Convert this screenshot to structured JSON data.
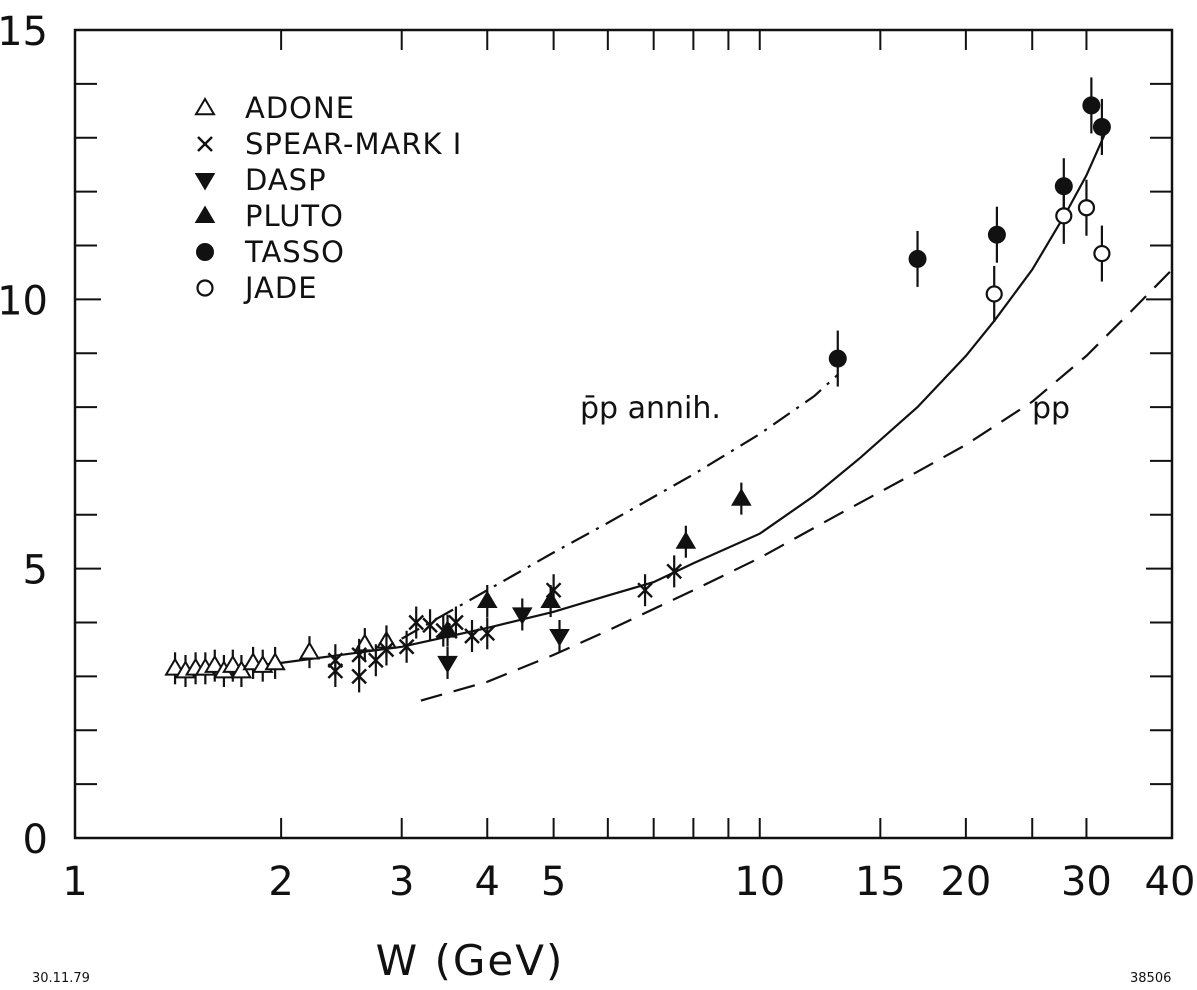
{
  "chart_data": {
    "type": "scatter",
    "x_scale": "log",
    "xlabel": "W (GeV)",
    "ylabel": "",
    "xlim": [
      1,
      40
    ],
    "ylim": [
      0,
      15
    ],
    "x_ticks": [
      1,
      2,
      3,
      4,
      5,
      10,
      15,
      20,
      30,
      40
    ],
    "x_tick_labels": [
      "1",
      "2",
      "3",
      "4",
      "5",
      "10",
      "15",
      "20",
      "30",
      "40"
    ],
    "y_ticks": [
      0,
      5,
      10,
      15
    ],
    "y_tick_labels": [
      "0",
      "5",
      "10",
      "15"
    ],
    "legend_position": "top-left",
    "legend": [
      {
        "label": "ADONE",
        "marker": "triangle-open"
      },
      {
        "label": "SPEAR-MARK I",
        "marker": "cross"
      },
      {
        "label": "DASP",
        "marker": "triangle-down-filled"
      },
      {
        "label": "PLUTO",
        "marker": "triangle-filled"
      },
      {
        "label": "TASSO",
        "marker": "circle-filled"
      },
      {
        "label": "JADE",
        "marker": "circle-open"
      }
    ],
    "series": [
      {
        "name": "ADONE",
        "marker": "triangle-open",
        "points": [
          [
            1.4,
            3.15
          ],
          [
            1.45,
            3.1
          ],
          [
            1.5,
            3.15
          ],
          [
            1.55,
            3.15
          ],
          [
            1.6,
            3.2
          ],
          [
            1.65,
            3.1
          ],
          [
            1.7,
            3.2
          ],
          [
            1.75,
            3.1
          ],
          [
            1.82,
            3.25
          ],
          [
            1.88,
            3.2
          ],
          [
            1.96,
            3.25
          ],
          [
            2.2,
            3.45
          ],
          [
            2.65,
            3.6
          ],
          [
            2.85,
            3.65
          ]
        ]
      },
      {
        "name": "SPEAR-MARK I",
        "marker": "cross",
        "points": [
          [
            2.4,
            3.3
          ],
          [
            2.4,
            3.1
          ],
          [
            2.6,
            3.4
          ],
          [
            2.6,
            3.0
          ],
          [
            2.75,
            3.3
          ],
          [
            2.85,
            3.5
          ],
          [
            3.05,
            3.55
          ],
          [
            3.15,
            4.0
          ],
          [
            3.3,
            3.95
          ],
          [
            3.45,
            3.85
          ],
          [
            3.6,
            4.0
          ],
          [
            3.8,
            3.75
          ],
          [
            4.0,
            3.8
          ],
          [
            5.0,
            4.6
          ],
          [
            6.8,
            4.6
          ],
          [
            7.5,
            4.95
          ]
        ]
      },
      {
        "name": "DASP",
        "marker": "triangle-down-filled",
        "points": [
          [
            3.5,
            3.25
          ],
          [
            4.5,
            4.15
          ],
          [
            5.1,
            3.75
          ]
        ]
      },
      {
        "name": "PLUTO",
        "marker": "triangle-filled",
        "points": [
          [
            3.5,
            3.85
          ],
          [
            4.0,
            4.4
          ],
          [
            4.95,
            4.4
          ],
          [
            7.8,
            5.5
          ],
          [
            9.4,
            6.3
          ]
        ]
      },
      {
        "name": "TASSO",
        "marker": "circle-filled",
        "points": [
          [
            13.0,
            8.9
          ],
          [
            17.0,
            10.75
          ],
          [
            22.2,
            11.2
          ],
          [
            27.8,
            12.1
          ],
          [
            30.5,
            13.6
          ],
          [
            31.6,
            13.2
          ]
        ]
      },
      {
        "name": "JADE",
        "marker": "circle-open",
        "points": [
          [
            22.0,
            10.1
          ],
          [
            27.8,
            11.55
          ],
          [
            30.0,
            11.7
          ],
          [
            31.6,
            10.85
          ]
        ]
      }
    ],
    "curves": [
      {
        "name": "fit",
        "style": "solid",
        "points": [
          [
            1.5,
            3.1
          ],
          [
            2,
            3.25
          ],
          [
            3,
            3.55
          ],
          [
            4,
            3.9
          ],
          [
            5,
            4.2
          ],
          [
            6,
            4.5
          ],
          [
            7,
            4.75
          ],
          [
            8,
            5.1
          ],
          [
            10,
            5.65
          ],
          [
            12,
            6.35
          ],
          [
            14,
            7.05
          ],
          [
            17,
            8.0
          ],
          [
            20,
            8.95
          ],
          [
            22,
            9.6
          ],
          [
            25,
            10.55
          ],
          [
            28,
            11.6
          ],
          [
            30,
            12.3
          ],
          [
            32,
            13.1
          ]
        ]
      },
      {
        "name": "p̄p annih.",
        "style": "dashdot",
        "label": "p̄p annih.",
        "points": [
          [
            3,
            3.7
          ],
          [
            4,
            4.6
          ],
          [
            5,
            5.3
          ],
          [
            6,
            5.85
          ],
          [
            8,
            6.75
          ],
          [
            10,
            7.5
          ],
          [
            12,
            8.2
          ],
          [
            13,
            8.6
          ]
        ]
      },
      {
        "name": "pp",
        "style": "dashed",
        "label": "pp",
        "points": [
          [
            3.2,
            2.55
          ],
          [
            4,
            2.9
          ],
          [
            5,
            3.4
          ],
          [
            6,
            3.85
          ],
          [
            8,
            4.6
          ],
          [
            10,
            5.2
          ],
          [
            13,
            6.0
          ],
          [
            17,
            6.8
          ],
          [
            20,
            7.3
          ],
          [
            25,
            8.1
          ],
          [
            30,
            8.95
          ],
          [
            35,
            9.8
          ],
          [
            40,
            10.55
          ]
        ]
      }
    ],
    "annotations": [
      {
        "text": "p̄p annih.",
        "x": 8.2,
        "y": 7.6
      },
      {
        "text": "pp",
        "x": 30,
        "y": 7.6
      }
    ],
    "corner_left": "30.11.79",
    "corner_right": "38506"
  }
}
